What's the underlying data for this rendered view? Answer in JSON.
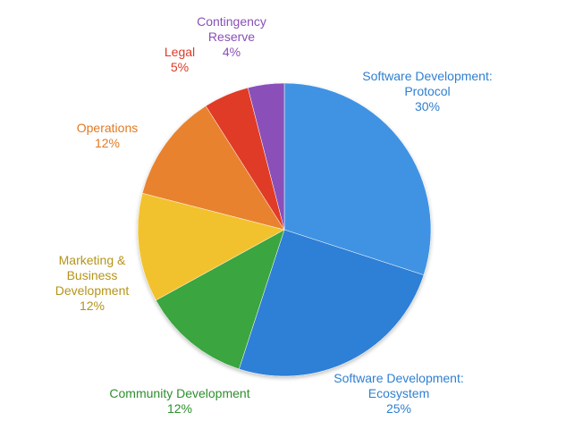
{
  "chart_data": {
    "type": "pie",
    "title": "",
    "slices": [
      {
        "label_lines": [
          "Software Development:",
          "Protocol"
        ],
        "label": "Software Development: Protocol",
        "pct_text": "30%",
        "value": 30,
        "color": "#3f93e2",
        "label_color": "#2f7fd0"
      },
      {
        "label_lines": [
          "Software Development:",
          "Ecosystem"
        ],
        "label": "Software Development: Ecosystem",
        "pct_text": "25%",
        "value": 25,
        "color": "#2f7fd6",
        "label_color": "#2f7fd0"
      },
      {
        "label_lines": [
          "Community Development"
        ],
        "label": "Community Development",
        "pct_text": "12%",
        "value": 12,
        "color": "#3aa540",
        "label_color": "#2e8f2e"
      },
      {
        "label_lines": [
          "Marketing &",
          "Business",
          "Development"
        ],
        "label": "Marketing & Business Development",
        "pct_text": "12%",
        "value": 12,
        "color": "#f2c22e",
        "label_color": "#b59419"
      },
      {
        "label_lines": [
          "Operations"
        ],
        "label": "Operations",
        "pct_text": "12%",
        "value": 12,
        "color": "#e9822d",
        "label_color": "#e07a22"
      },
      {
        "label_lines": [
          "Legal"
        ],
        "label": "Legal",
        "pct_text": "5%",
        "value": 5,
        "color": "#e03a27",
        "label_color": "#dd3a27"
      },
      {
        "label_lines": [
          "Contingency",
          "Reserve"
        ],
        "label": "Contingency Reserve",
        "pct_text": "4%",
        "value": 4,
        "color": "#8a4fb8",
        "label_color": "#8a4fb8"
      }
    ]
  }
}
